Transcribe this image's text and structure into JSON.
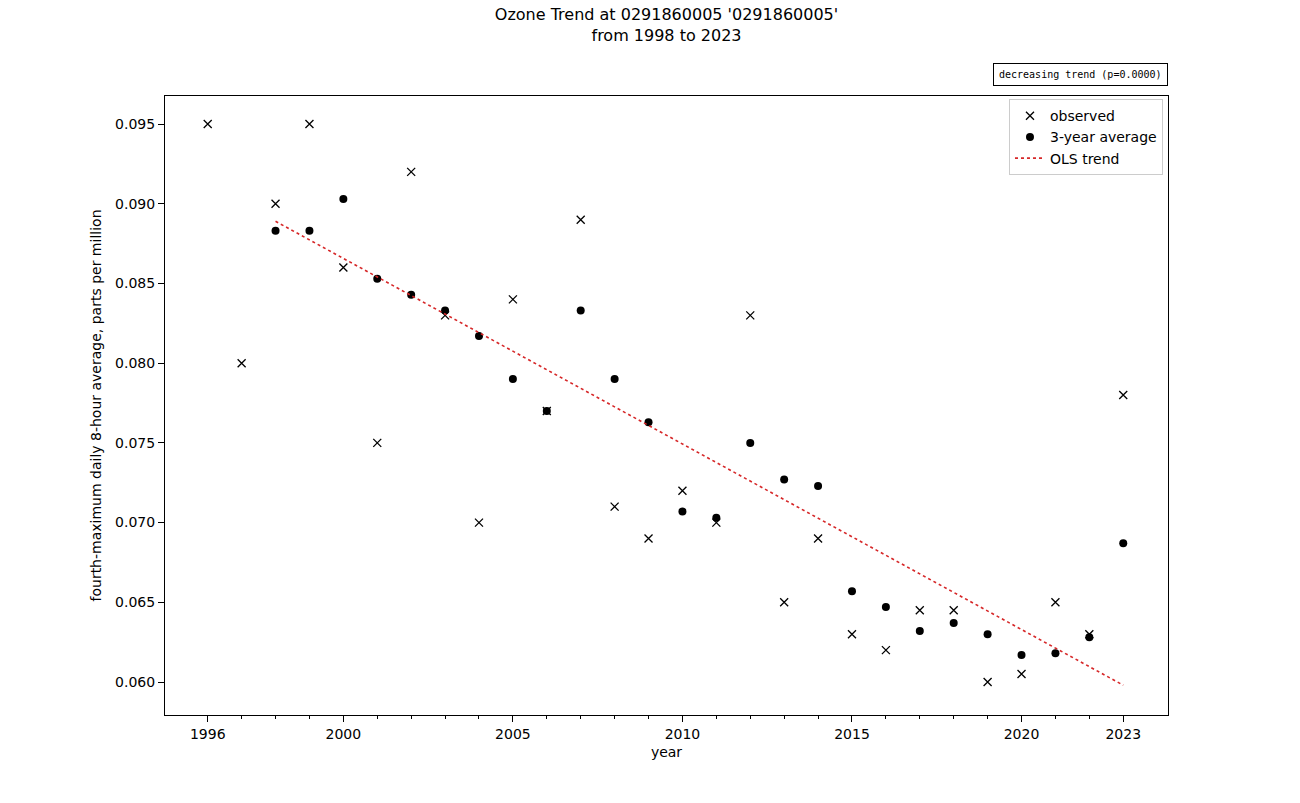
{
  "chart_data": {
    "type": "scatter",
    "title": "Ozone Trend at 0291860005 '0291860005'\nfrom 1998 to 2023",
    "annotations": [
      "decreasing trend (p=0.0000)"
    ],
    "x_label": "year",
    "y_label": "fourth-maximum daily 8-hour average, parts per million",
    "legend": "upper right",
    "grid": false,
    "xlim": [
      1994.74,
      2024.32
    ],
    "xticks": [
      1996,
      2000,
      2005,
      2010,
      2015,
      2020,
      2023
    ],
    "ylim": [
      0.05793,
      0.09676
    ],
    "yticks": [
      {
        "value": 0.06,
        "label": "0.060"
      },
      0.065,
      {
        "value": 0.07,
        "label": "0.070"
      },
      0.075,
      {
        "value": 0.08,
        "label": "0.080"
      },
      0.085,
      {
        "value": 0.09,
        "label": "0.090"
      },
      0.095
    ],
    "series": [
      {
        "name": "observed",
        "type": "scatter",
        "marker": "x",
        "color": "#000000",
        "x": [
          1996,
          1997,
          1998,
          1999,
          2000,
          2001,
          2002,
          2003,
          2004,
          2005,
          2006,
          2007,
          2008,
          2009,
          2010,
          2011,
          2012,
          2013,
          2014,
          2015,
          2016,
          2017,
          2018,
          2019,
          2020,
          2021,
          2022,
          2023
        ],
        "values": [
          0.095,
          0.08,
          0.09,
          0.095,
          0.086,
          0.075,
          0.092,
          0.083,
          0.07,
          0.084,
          0.077,
          0.089,
          0.071,
          0.069,
          0.072,
          0.07,
          0.083,
          0.065,
          0.069,
          0.063,
          0.062,
          0.0645,
          0.0645,
          0.06,
          0.0605,
          0.065,
          0.063,
          0.078
        ]
      },
      {
        "name": "3-year average",
        "type": "scatter",
        "marker": "circle",
        "color": "#000000",
        "x": [
          1998,
          1999,
          2000,
          2001,
          2002,
          2003,
          2004,
          2005,
          2006,
          2007,
          2008,
          2009,
          2010,
          2011,
          2012,
          2013,
          2014,
          2015,
          2016,
          2017,
          2018,
          2019,
          2020,
          2021,
          2022,
          2023
        ],
        "values": [
          0.0883,
          0.0883,
          0.0903,
          0.0853,
          0.0843,
          0.0833,
          0.0817,
          0.079,
          0.077,
          0.0833,
          0.079,
          0.0763,
          0.0707,
          0.0703,
          0.075,
          0.0727,
          0.0723,
          0.0657,
          0.0647,
          0.0632,
          0.0637,
          0.063,
          0.0617,
          0.0618,
          0.0628,
          0.0687
        ]
      },
      {
        "name": "OLS trend",
        "type": "line",
        "line_style": "dotted",
        "color": "#d62728",
        "x": [
          1998,
          2023
        ],
        "values": [
          0.0889,
          0.0598
        ]
      }
    ]
  }
}
